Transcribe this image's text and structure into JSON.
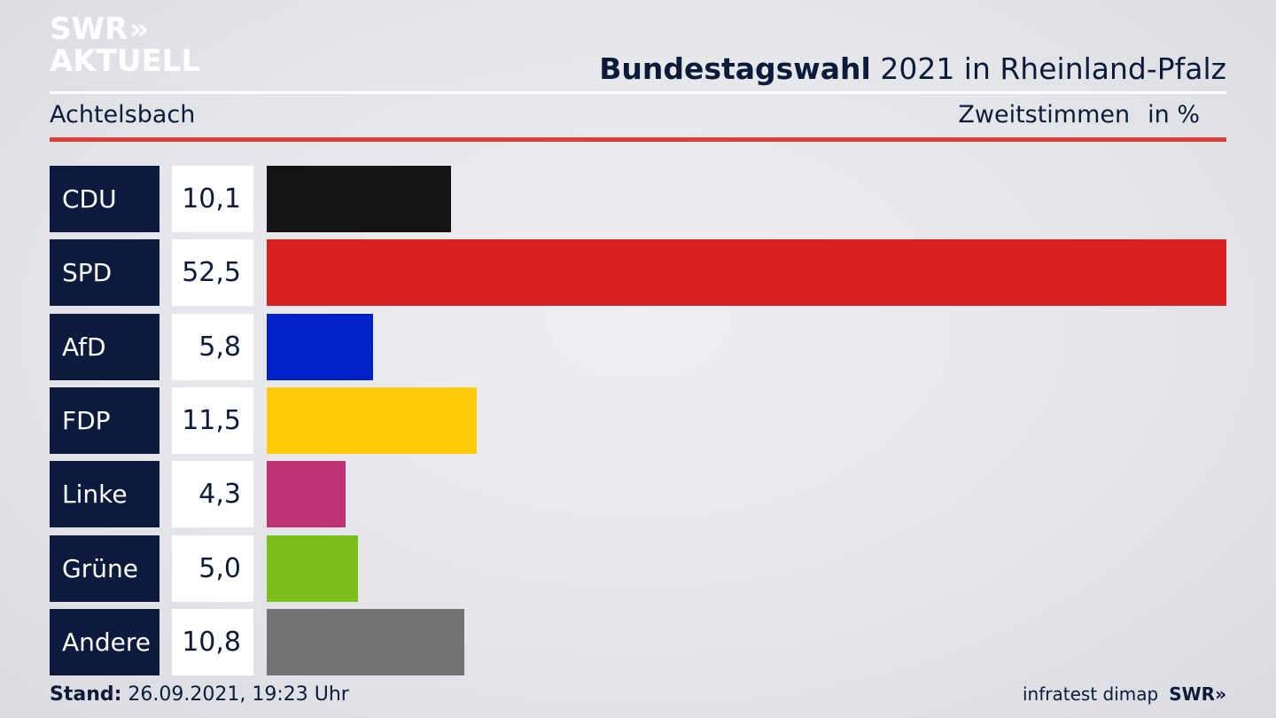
{
  "header": {
    "logo_line1": "SWR",
    "logo_chevrons": "»",
    "logo_line2": "AKTUELL",
    "title_bold": "Bundestagswahl",
    "title_rest": " 2021 in Rheinland-Pfalz",
    "region": "Achtelsbach",
    "vote_type": "Zweitstimmen",
    "unit": "in %"
  },
  "chart_data": {
    "type": "bar",
    "orientation": "horizontal",
    "categories": [
      "CDU",
      "SPD",
      "AfD",
      "FDP",
      "Linke",
      "Grüne",
      "Andere"
    ],
    "values": [
      10.1,
      52.5,
      5.8,
      11.5,
      4.3,
      5.0,
      10.8
    ],
    "value_labels": [
      "10,1",
      "52,5",
      "5,8",
      "11,5",
      "4,3",
      "5,0",
      "10,8"
    ],
    "colors": [
      "#141414",
      "#d72020",
      "#0020c8",
      "#ffcb0a",
      "#c03276",
      "#7bbe1e",
      "#737373"
    ],
    "title": "Bundestagswahl 2021 in Rheinland-Pfalz",
    "xlim": [
      0,
      52.5
    ]
  },
  "footer": {
    "stand_label": "Stand:",
    "stand_value": " 26.09.2021, 19:23 Uhr",
    "source": "infratest dimap",
    "brand": "SWR»"
  }
}
